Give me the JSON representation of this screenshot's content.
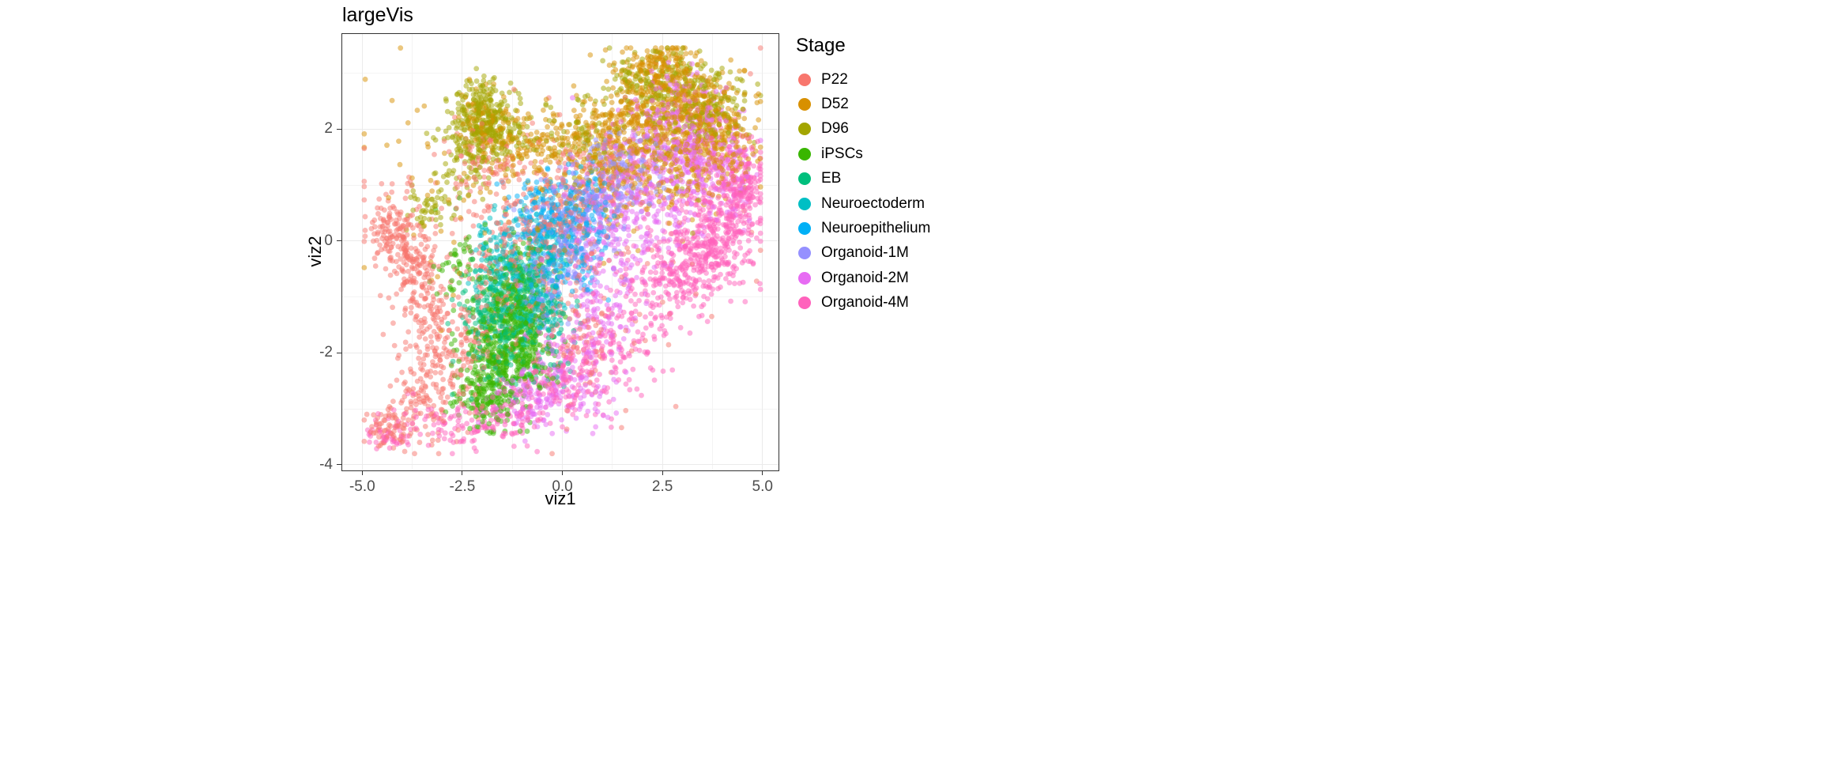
{
  "figure": {
    "background": "#FFFFFF"
  },
  "chart_data": {
    "type": "scatter",
    "title": "largeVis",
    "xlabel": "viz1",
    "ylabel": "viz2",
    "xlim": [
      -5.5,
      5.4
    ],
    "ylim": [
      -4.1,
      3.7
    ],
    "data_extent": {
      "x": [
        -4.95,
        4.95
      ],
      "y": [
        -3.8,
        3.45
      ]
    },
    "x_ticks": {
      "values": [
        -5.0,
        -2.5,
        0.0,
        2.5,
        5.0
      ],
      "labels": [
        "-5.0",
        "-2.5",
        "0.0",
        "2.5",
        "5.0"
      ]
    },
    "y_ticks": {
      "values": [
        -4,
        -2,
        0,
        2
      ],
      "labels": [
        "-4",
        "-2",
        "0",
        "2"
      ]
    },
    "grid": {
      "major_color": "#EBEBEB",
      "minor_color": "#F4F4F4",
      "x_minor": [
        -3.75,
        -1.25,
        1.25,
        3.75
      ],
      "y_minor": [
        -3,
        -1,
        1,
        3
      ]
    },
    "panel_border_color": "#333333",
    "tick_color": "#333333",
    "tick_label_color": "#4D4D4D",
    "point_alpha": 0.5,
    "point_radius": 3.4,
    "legend": {
      "title": "Stage",
      "position": "right"
    },
    "series": [
      {
        "name": "P22",
        "color": "#F8766D",
        "clusters": [
          [
            -4.2,
            0.15,
            0.28,
            0.35,
            130
          ],
          [
            -3.7,
            -0.5,
            0.35,
            0.45,
            130
          ],
          [
            -3.3,
            -1.4,
            0.3,
            0.5,
            90
          ],
          [
            -3.5,
            -2.7,
            0.4,
            0.45,
            110
          ],
          [
            -4.35,
            -3.3,
            0.3,
            0.18,
            70
          ],
          [
            -2.3,
            -2.0,
            0.55,
            0.6,
            130
          ],
          [
            -1.1,
            -0.5,
            0.75,
            0.65,
            170
          ],
          [
            -0.2,
            0.5,
            0.7,
            0.55,
            150
          ],
          [
            1.1,
            1.1,
            0.8,
            0.5,
            110
          ],
          [
            -1.9,
            1.3,
            0.5,
            0.35,
            70
          ],
          [
            0.4,
            -1.6,
            0.7,
            0.55,
            90
          ],
          [
            0.0,
            0.0,
            2.3,
            1.5,
            130
          ]
        ]
      },
      {
        "name": "D52",
        "color": "#D89000",
        "clusters": [
          [
            2.6,
            2.4,
            0.75,
            0.5,
            330
          ],
          [
            3.6,
            2.1,
            0.5,
            0.5,
            190
          ],
          [
            1.6,
            1.9,
            0.7,
            0.4,
            190
          ],
          [
            2.45,
            3.1,
            0.45,
            0.22,
            110
          ],
          [
            0.3,
            1.7,
            0.7,
            0.35,
            140
          ],
          [
            -1.3,
            1.75,
            0.5,
            0.3,
            90
          ],
          [
            -2.0,
            2.15,
            0.3,
            0.3,
            70
          ],
          [
            4.15,
            1.7,
            0.4,
            0.4,
            90
          ],
          [
            1.0,
            0.9,
            0.9,
            0.5,
            100
          ],
          [
            3.0,
            1.3,
            0.6,
            0.4,
            100
          ],
          [
            -2.1,
            1.0,
            1.5,
            1.0,
            60
          ]
        ]
      },
      {
        "name": "D96",
        "color": "#A3A500",
        "clusters": [
          [
            -2.0,
            2.25,
            0.35,
            0.32,
            220
          ],
          [
            -2.35,
            1.55,
            0.4,
            0.35,
            110
          ],
          [
            -1.5,
            1.95,
            0.4,
            0.28,
            90
          ],
          [
            2.8,
            2.6,
            0.8,
            0.4,
            170
          ],
          [
            3.8,
            2.35,
            0.45,
            0.35,
            80
          ],
          [
            1.9,
            2.95,
            0.5,
            0.28,
            70
          ],
          [
            -3.3,
            0.55,
            0.3,
            0.25,
            50
          ],
          [
            0.3,
            1.95,
            0.55,
            0.3,
            60
          ],
          [
            2.2,
            1.6,
            1.2,
            0.6,
            60
          ]
        ]
      },
      {
        "name": "iPSCs",
        "color": "#39B600",
        "clusters": [
          [
            -1.6,
            -2.1,
            0.45,
            0.5,
            300
          ],
          [
            -1.2,
            -1.2,
            0.4,
            0.4,
            170
          ],
          [
            -1.9,
            -2.85,
            0.4,
            0.28,
            110
          ],
          [
            -0.85,
            -2.0,
            0.4,
            0.4,
            120
          ],
          [
            -2.55,
            -0.4,
            0.3,
            0.45,
            50
          ],
          [
            -1.0,
            -0.35,
            0.45,
            0.35,
            60
          ]
        ]
      },
      {
        "name": "EB",
        "color": "#00BF7D",
        "clusters": [
          [
            -1.45,
            -1.6,
            0.5,
            0.5,
            170
          ],
          [
            -0.95,
            -0.9,
            0.4,
            0.4,
            110
          ],
          [
            -1.95,
            -1.05,
            0.35,
            0.4,
            80
          ],
          [
            -0.5,
            -1.75,
            0.4,
            0.4,
            80
          ]
        ]
      },
      {
        "name": "Neuroectoderm",
        "color": "#00BFC4",
        "clusters": [
          [
            -1.05,
            -0.6,
            0.5,
            0.4,
            120
          ],
          [
            -0.4,
            -0.1,
            0.4,
            0.35,
            90
          ],
          [
            -1.6,
            -0.15,
            0.35,
            0.3,
            70
          ],
          [
            -0.6,
            -1.25,
            0.4,
            0.3,
            60
          ]
        ]
      },
      {
        "name": "Neuroepithelium",
        "color": "#00B0F6",
        "clusters": [
          [
            -0.15,
            0.25,
            0.5,
            0.4,
            120
          ],
          [
            0.5,
            0.65,
            0.45,
            0.35,
            90
          ],
          [
            -0.8,
            0.5,
            0.4,
            0.3,
            60
          ],
          [
            0.1,
            -0.55,
            0.45,
            0.3,
            70
          ]
        ]
      },
      {
        "name": "Organoid-1M",
        "color": "#9590FF",
        "clusters": [
          [
            0.35,
            0.3,
            0.6,
            0.5,
            150
          ],
          [
            1.05,
            0.9,
            0.5,
            0.4,
            100
          ],
          [
            -0.3,
            -0.75,
            0.5,
            0.4,
            90
          ],
          [
            1.65,
            1.3,
            0.5,
            0.35,
            90
          ]
        ]
      },
      {
        "name": "Organoid-2M",
        "color": "#E76BF3",
        "clusters": [
          [
            2.2,
            1.0,
            0.8,
            0.6,
            240
          ],
          [
            3.2,
            1.7,
            0.6,
            0.5,
            190
          ],
          [
            1.2,
            0.2,
            0.7,
            0.5,
            150
          ],
          [
            0.2,
            -2.4,
            0.6,
            0.4,
            120
          ],
          [
            -0.8,
            -2.85,
            0.5,
            0.3,
            100
          ],
          [
            2.7,
            2.3,
            0.7,
            0.4,
            120
          ],
          [
            0.9,
            -1.2,
            0.6,
            0.5,
            100
          ],
          [
            4.0,
            1.1,
            0.45,
            0.4,
            80
          ]
        ]
      },
      {
        "name": "Organoid-4M",
        "color": "#FF62BC",
        "clusters": [
          [
            4.0,
            0.3,
            0.5,
            0.55,
            280
          ],
          [
            4.5,
            0.85,
            0.3,
            0.3,
            110
          ],
          [
            3.35,
            -0.3,
            0.5,
            0.4,
            170
          ],
          [
            2.5,
            -0.8,
            0.6,
            0.4,
            140
          ],
          [
            1.2,
            -1.8,
            0.7,
            0.5,
            140
          ],
          [
            0.0,
            -2.6,
            0.6,
            0.35,
            120
          ],
          [
            -1.3,
            -3.15,
            0.5,
            0.28,
            90
          ],
          [
            -2.7,
            -3.3,
            0.6,
            0.22,
            70
          ],
          [
            -4.3,
            -3.4,
            0.35,
            0.18,
            50
          ],
          [
            4.3,
            1.5,
            0.4,
            0.3,
            70
          ]
        ]
      }
    ]
  }
}
